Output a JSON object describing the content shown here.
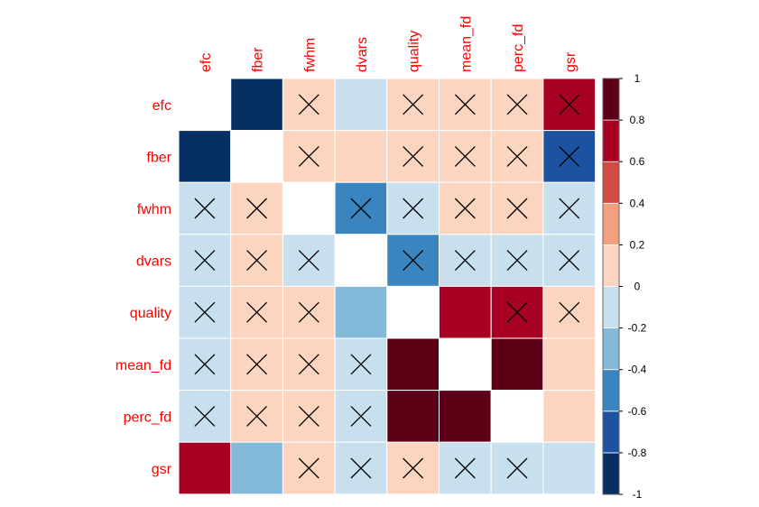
{
  "chart_data": {
    "type": "heatmap",
    "title": "",
    "variables": [
      "efc",
      "fber",
      "fwhm",
      "dvars",
      "quality",
      "mean_fd",
      "perc_fd",
      "gsr"
    ],
    "matrix": [
      [
        null,
        -0.85,
        0.15,
        -0.15,
        0.15,
        0.15,
        0.15,
        0.65
      ],
      [
        -0.85,
        null,
        0.15,
        0.15,
        0.15,
        0.15,
        0.15,
        -0.65
      ],
      [
        -0.15,
        0.15,
        null,
        -0.45,
        -0.15,
        0.15,
        0.15,
        -0.15
      ],
      [
        -0.15,
        0.15,
        -0.15,
        null,
        -0.45,
        -0.15,
        -0.15,
        -0.15
      ],
      [
        -0.15,
        0.15,
        0.15,
        -0.35,
        null,
        0.65,
        0.65,
        0.15
      ],
      [
        -0.15,
        0.15,
        0.15,
        -0.15,
        0.95,
        null,
        0.95,
        0.15
      ],
      [
        -0.15,
        0.15,
        0.15,
        -0.15,
        0.85,
        0.95,
        null,
        0.15
      ],
      [
        0.65,
        -0.35,
        0.15,
        -0.15,
        0.15,
        -0.15,
        -0.15,
        -0.15
      ]
    ],
    "crossed": [
      [
        false,
        false,
        true,
        false,
        true,
        true,
        true,
        true
      ],
      [
        false,
        false,
        true,
        false,
        true,
        true,
        true,
        true
      ],
      [
        true,
        true,
        false,
        true,
        true,
        true,
        true,
        true
      ],
      [
        true,
        true,
        true,
        false,
        true,
        true,
        true,
        true
      ],
      [
        true,
        true,
        true,
        false,
        false,
        false,
        true,
        true
      ],
      [
        true,
        true,
        true,
        true,
        false,
        false,
        false,
        false
      ],
      [
        true,
        true,
        true,
        true,
        false,
        false,
        false,
        false
      ],
      [
        false,
        false,
        true,
        true,
        true,
        true,
        true,
        false
      ]
    ],
    "colorbar": {
      "range": [
        -1,
        1
      ],
      "ticks": [
        "1",
        "0.8",
        "0.6",
        "0.4",
        "0.2",
        "0",
        "-0.2",
        "-0.4",
        "-0.6",
        "-0.8",
        "-1"
      ],
      "bins": [
        {
          "min": -1.0,
          "max": -0.8,
          "color": "#053061"
        },
        {
          "min": -0.8,
          "max": -0.6,
          "color": "#1c52a0"
        },
        {
          "min": -0.6,
          "max": -0.4,
          "color": "#3a85bf"
        },
        {
          "min": -0.4,
          "max": -0.2,
          "color": "#83b9d9"
        },
        {
          "min": -0.2,
          "max": 0.0,
          "color": "#c8e0ed"
        },
        {
          "min": 0.0,
          "max": 0.2,
          "color": "#fcd5c0"
        },
        {
          "min": 0.2,
          "max": 0.4,
          "color": "#f2a07e"
        },
        {
          "min": 0.4,
          "max": 0.6,
          "color": "#d24b40"
        },
        {
          "min": 0.6,
          "max": 0.8,
          "color": "#a60022"
        },
        {
          "min": 0.8,
          "max": 1.0,
          "color": "#5d0017"
        }
      ]
    },
    "diagonal_color": "#ffffff",
    "label_color": "#ff0000",
    "cross_color": "#000000"
  }
}
